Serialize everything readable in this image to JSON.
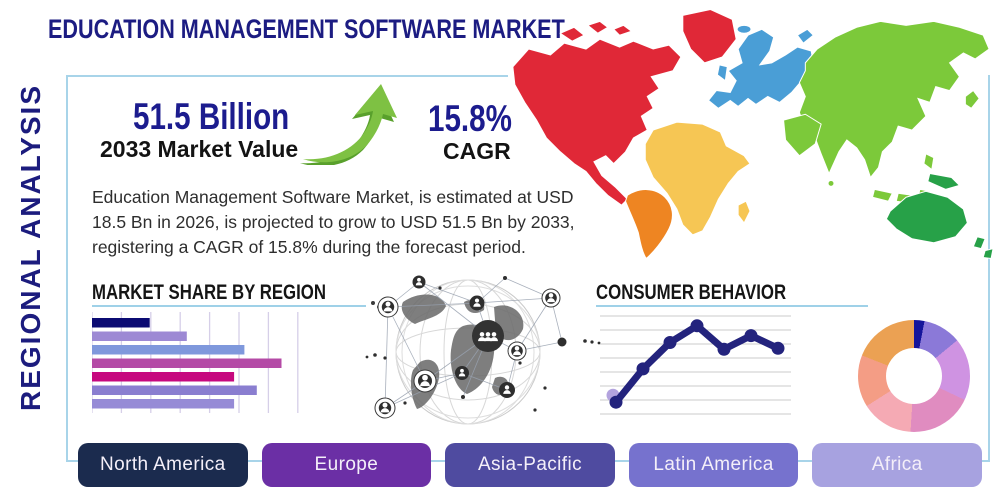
{
  "page": {
    "title": "EDUCATION MANAGEMENT SOFTWARE MARKET",
    "side_label": "REGIONAL ANALYSIS"
  },
  "stats": {
    "market_value": "51.5 Billion",
    "market_value_label": "2033 Market Value",
    "cagr_value": "15.8%",
    "cagr_label": "CAGR",
    "growth_arrow_color": "#7ec143"
  },
  "description": "Education Management Software Market, is estimated at USD 18.5 Bn in 2026, is projected to grow to USD 51.5 Bn by 2033, registering a CAGR of 15.8% during the forecast period.",
  "sections": {
    "market_share_title": "MARKET SHARE BY REGION",
    "consumer_behavior_title": "CONSUMER BEHAVIOR"
  },
  "theme": {
    "card_border": "#a8d4e9",
    "navy": "#1c1c8e",
    "underline": "#9fd1e8"
  },
  "map": {
    "colors": {
      "north_america": "#e02837",
      "south_america": "#ee8522",
      "europe": "#4a9ed6",
      "africa": "#f6c654",
      "asia": "#7cc93a",
      "australia": "#27a148"
    }
  },
  "chart_data": [
    {
      "type": "bar",
      "title": "MARKET SHARE BY REGION",
      "orientation": "horizontal",
      "values_pct": [
        28,
        46,
        74,
        92,
        69,
        80,
        69
      ],
      "colors": [
        "#0b0b73",
        "#9d89d4",
        "#7f98dc",
        "#b44aa6",
        "#c6087f",
        "#8a7ed0",
        "#968bd6"
      ],
      "xlim": [
        0,
        100
      ],
      "grid": "vertical",
      "grid_color": "#d6cfe8"
    },
    {
      "type": "line",
      "title": "CONSUMER BEHAVIOR",
      "x": [
        1,
        2,
        3,
        4,
        5,
        6,
        7
      ],
      "values": [
        1.2,
        4.6,
        7.3,
        9.0,
        6.6,
        8.0,
        6.7
      ],
      "ylim": [
        0,
        10
      ],
      "line_color": "#23237d",
      "first_point_halo_color": "#b3a3de",
      "grid": "horizontal",
      "grid_color": "#cbcbcb"
    },
    {
      "type": "pie",
      "donut": true,
      "values_pct": [
        3,
        11,
        18,
        19,
        15,
        15,
        19
      ],
      "colors": [
        "#15159b",
        "#8b79d8",
        "#cf93e2",
        "#e08cc0",
        "#f5aab4",
        "#f49d85",
        "#eba153"
      ],
      "start_angle_deg": 0
    }
  ],
  "region_buttons": [
    {
      "label": "North America",
      "color": "#1b2b4e"
    },
    {
      "label": "Europe",
      "color": "#6b2fa5"
    },
    {
      "label": "Asia-Pacific",
      "color": "#4f4ba0"
    },
    {
      "label": "Latin America",
      "color": "#7672ce"
    },
    {
      "label": "Africa",
      "color": "#a7a2e0"
    }
  ]
}
